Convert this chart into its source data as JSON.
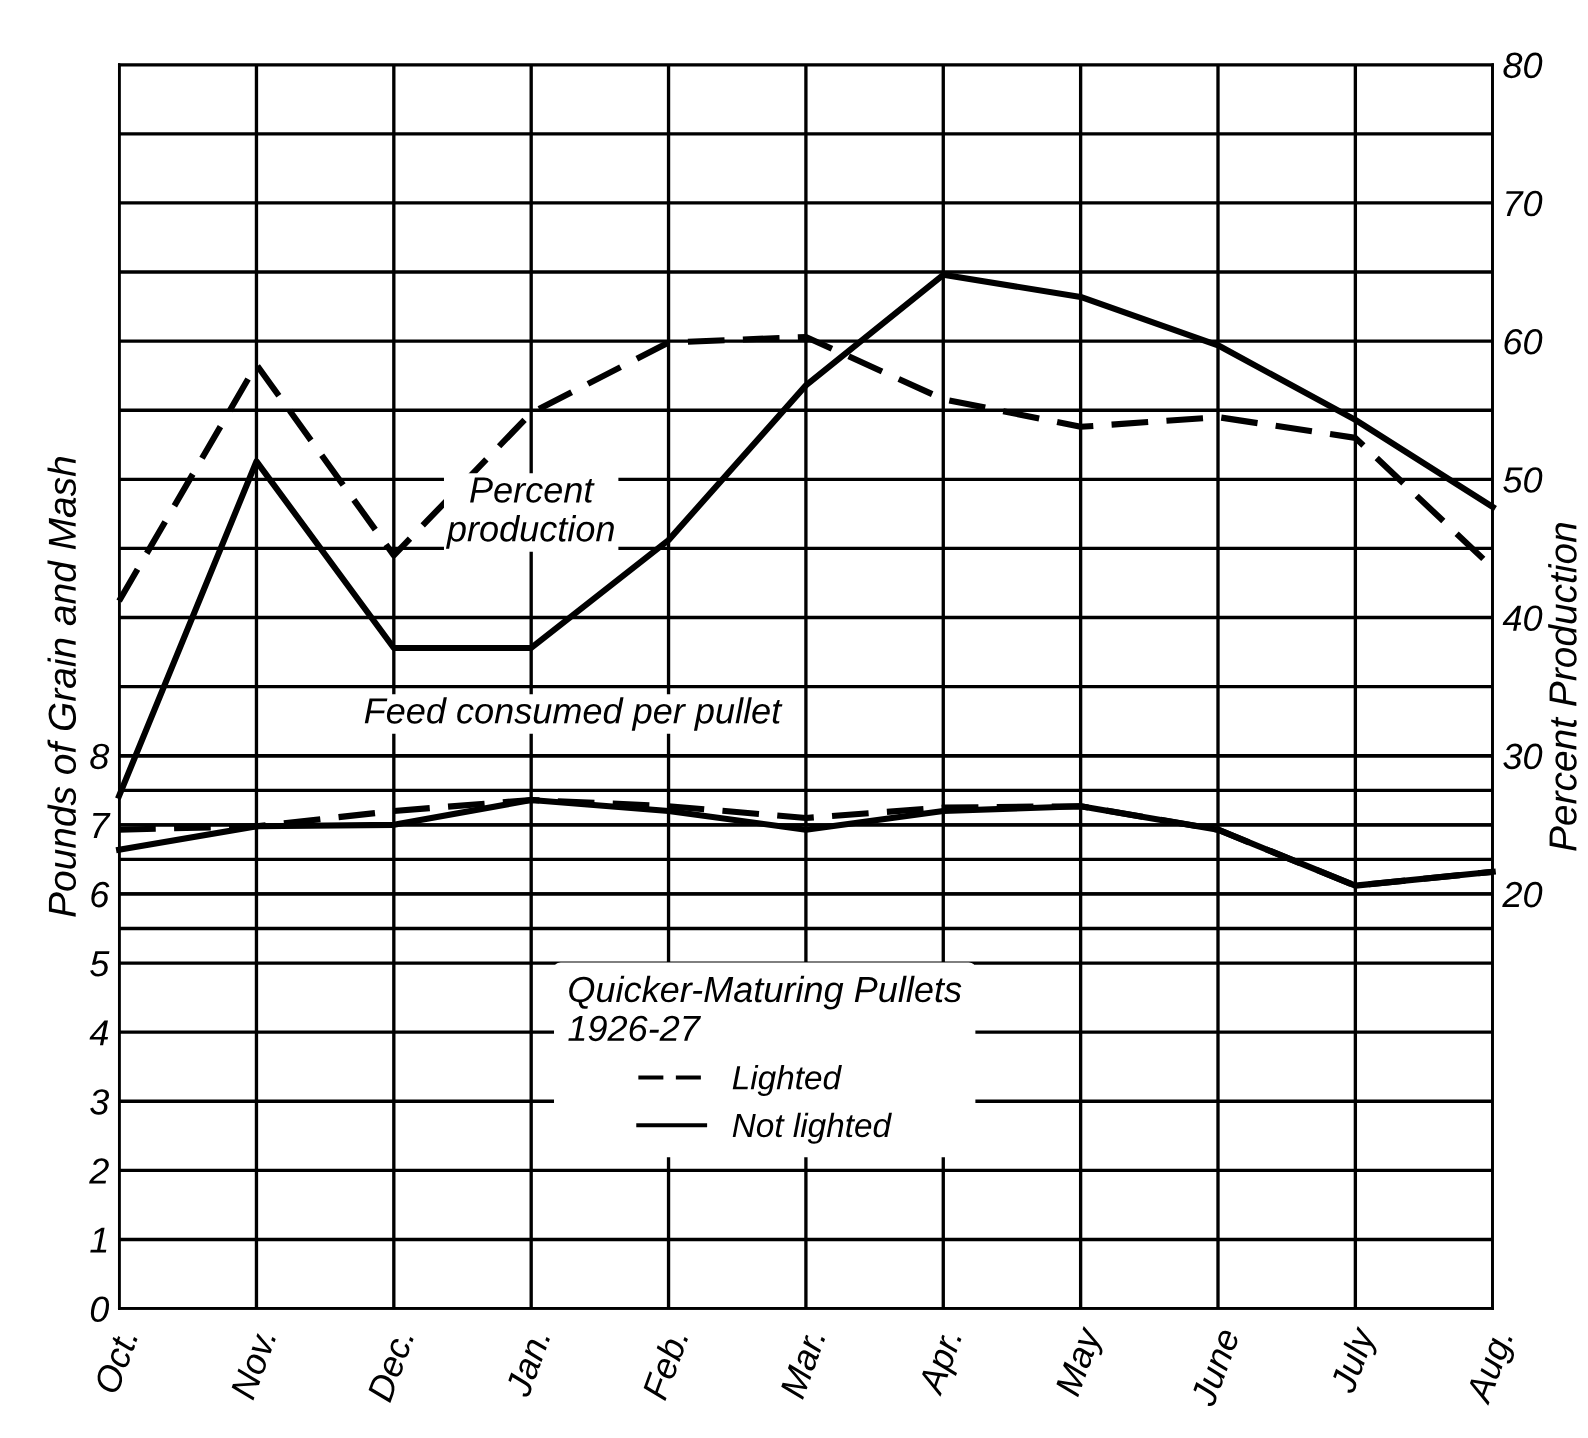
{
  "chart_data": {
    "type": "line",
    "categories": [
      "Oct.",
      "Nov.",
      "Dec.",
      "Jan.",
      "Feb.",
      "Mar.",
      "Apr.",
      "May",
      "June",
      "July",
      "Aug."
    ],
    "series": [
      {
        "name": "Lighted",
        "color": "#000000",
        "line_style": "dashed",
        "axis": "y2",
        "values": [
          41.2,
          58.3,
          44.5,
          54.8,
          59.9,
          60.3,
          55.8,
          53.8,
          54.5,
          53.0,
          43.6
        ]
      },
      {
        "name": "Not lighted",
        "color": "#000000",
        "line_style": "solid",
        "axis": "y2",
        "values": [
          27.1,
          51.3,
          37.8,
          37.8,
          45.6,
          56.8,
          64.8,
          63.2,
          59.7,
          54.3,
          48.0
        ]
      },
      {
        "color": "#000000",
        "line_style": "dashed",
        "axis": "y",
        "values": [
          6.93,
          6.98,
          7.2,
          7.36,
          7.27,
          7.1,
          7.25,
          7.27,
          6.93,
          6.12,
          6.32
        ]
      },
      {
        "color": "#000000",
        "line_style": "solid",
        "axis": "y",
        "values": [
          6.64,
          6.98,
          7.0,
          7.36,
          7.2,
          6.93,
          7.2,
          7.27,
          6.93,
          6.12,
          6.32
        ]
      }
    ],
    "ylim": [
      0,
      18
    ],
    "yticks": [
      0,
      1,
      2,
      3,
      4,
      5,
      {
        "value": 5.5,
        "label": null
      },
      6,
      {
        "value": 6.5,
        "label": null
      },
      7,
      {
        "value": 7.5,
        "label": null
      },
      8
    ],
    "y2lim": [
      -10,
      80
    ],
    "y2ticks": [
      20,
      {
        "value": 25,
        "label": null
      },
      30,
      {
        "value": 35,
        "label": null
      },
      40,
      {
        "value": 45,
        "label": null
      },
      50,
      {
        "value": 55,
        "label": null
      },
      60,
      {
        "value": 65,
        "label": null
      },
      70,
      {
        "value": 75,
        "label": null
      },
      80
    ],
    "ylabel": "Pounds of Grain and Mash",
    "y2label": "Percent Production",
    "legend_title": "Quicker-Maturing Pullets\n1926-27",
    "legend": "bottom",
    "annotations": [
      "Percent production",
      "Feed consumed per pullet"
    ],
    "grid": true
  }
}
